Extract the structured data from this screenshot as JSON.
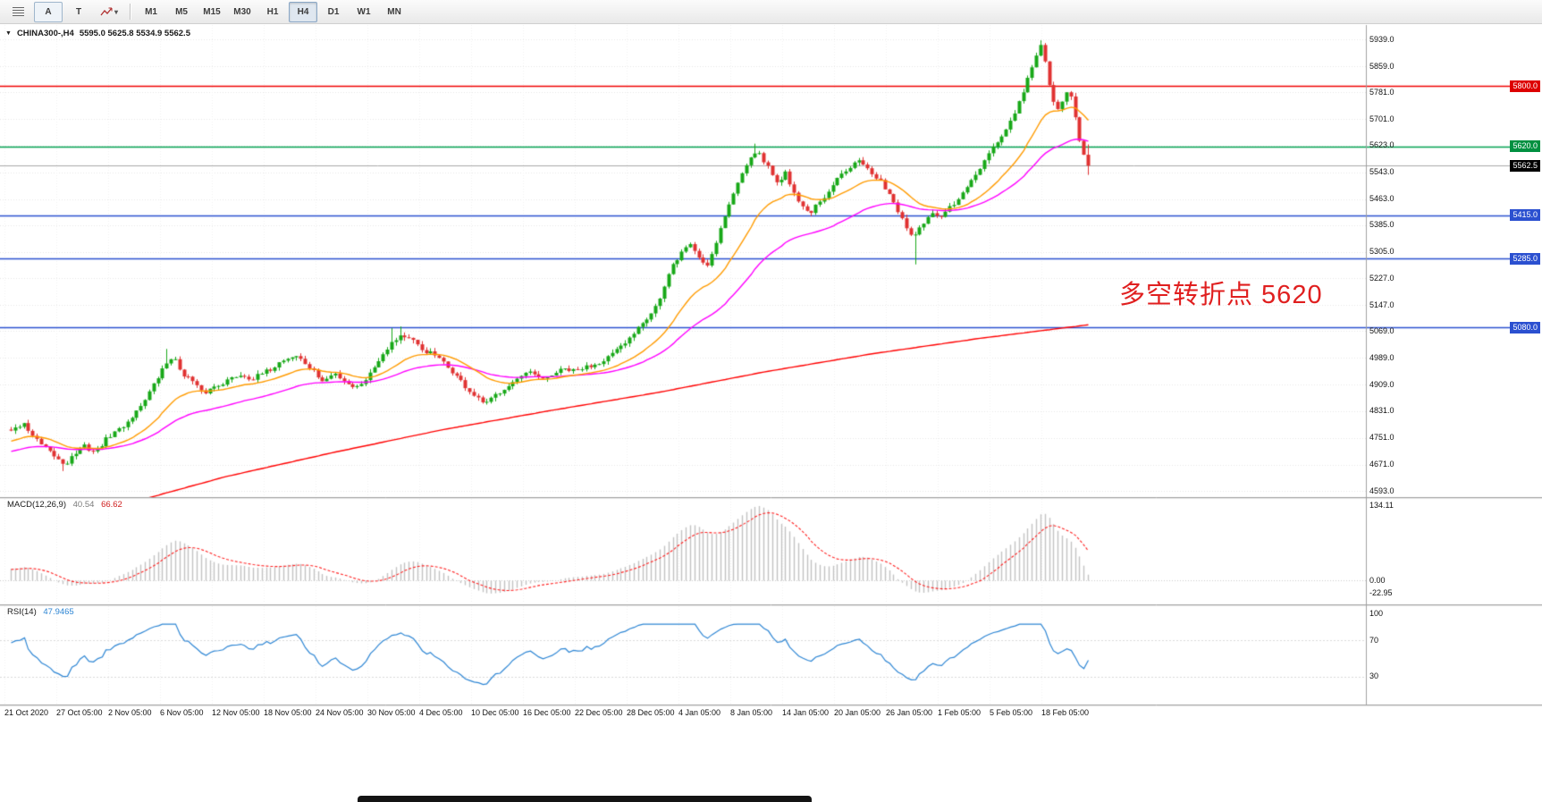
{
  "glyphs": {
    "collapse": "▼",
    "caret": "▾"
  },
  "toolbar": {
    "tools": {
      "a_label": "A",
      "t_label": "T"
    },
    "timeframes": [
      "M1",
      "M5",
      "M15",
      "M30",
      "H1",
      "H4",
      "D1",
      "W1",
      "MN"
    ],
    "active_timeframe": "H4"
  },
  "chart": {
    "title": {
      "symbol_tf": "CHINA300-,H4",
      "ohlc": "5595.0 5625.8 5534.9 5562.5"
    },
    "annotation": {
      "text": "多空转折点 5620"
    },
    "price_axis": {
      "labels": [
        "5939.0",
        "5859.0",
        "5781.0",
        "5701.0",
        "5623.0",
        "5543.0",
        "5463.0",
        "5385.0",
        "5305.0",
        "5227.0",
        "5147.0",
        "5069.0",
        "4989.0",
        "4909.0",
        "4831.0",
        "4751.0",
        "4671.0",
        "4593.0"
      ]
    },
    "levels": [
      {
        "price": 5800.0,
        "label": "5800.0",
        "line": "#f00000",
        "tag": "#dd0000"
      },
      {
        "price": 5620.0,
        "label": "5620.0",
        "line": "#00a050",
        "tag": "#009040"
      },
      {
        "price": 5415.0,
        "label": "5415.0",
        "line": "#2b50d0",
        "tag": "#2b50d0"
      },
      {
        "price": 5285.0,
        "label": "5285.0",
        "line": "#2b50d0",
        "tag": "#2b50d0"
      },
      {
        "price": 5080.0,
        "label": "5080.0",
        "line": "#2b50d0",
        "tag": "#2b50d0"
      }
    ],
    "bid": {
      "price": 5562.5,
      "label": "5562.5",
      "line": "#a8a8a8",
      "tag": "#000000"
    },
    "time_axis": [
      "21 Oct 2020",
      "27 Oct 05:00",
      "2 Nov 05:00",
      "6 Nov 05:00",
      "12 Nov 05:00",
      "18 Nov 05:00",
      "24 Nov 05:00",
      "30 Nov 05:00",
      "4 Dec 05:00",
      "10 Dec 05:00",
      "16 Dec 05:00",
      "22 Dec 05:00",
      "28 Dec 05:00",
      "4 Jan 05:00",
      "8 Jan 05:00",
      "14 Jan 05:00",
      "20 Jan 05:00",
      "26 Jan 05:00",
      "1 Feb 05:00",
      "5 Feb 05:00",
      "18 Feb 05:00"
    ]
  },
  "indicators": {
    "macd": {
      "label": "MACD(12,26,9)",
      "value_main": "40.54",
      "value_signal": "66.62",
      "axis": [
        "134.11",
        "0.00",
        "-22.95"
      ]
    },
    "rsi": {
      "label": "RSI(14)",
      "value": "47.9465",
      "axis": [
        "100",
        "70",
        "30"
      ]
    }
  },
  "colors": {
    "bull": "#18a818",
    "bear": "#e03232",
    "ma_fast": "#ff9b00",
    "ma_mid": "#ff00ff",
    "ma_slow": "#ff0000",
    "macd_hist": "#c2c2c2",
    "macd_signal": "#ff2020",
    "rsi_line": "#2e86d4",
    "grid": "#e7e7e7",
    "separator": "#a0a0a0",
    "annotation": "#e01f1f",
    "bid_line": "#a8a8a8"
  },
  "chart_data": {
    "type": "candlestick",
    "symbol": "CHINA300-",
    "timeframe": "H4",
    "bars": 250,
    "view_price_range": [
      4574,
      5982
    ],
    "last_bar": {
      "open": 5595.0,
      "high": 5625.8,
      "low": 5534.9,
      "close": 5562.5
    },
    "levels": [
      5800.0,
      5620.0,
      5415.0,
      5285.0,
      5080.0
    ],
    "bid": 5562.5,
    "price_anchors": [
      [
        0,
        4775
      ],
      [
        0.012,
        4792
      ],
      [
        0.02,
        4758
      ],
      [
        0.03,
        4722
      ],
      [
        0.042,
        4692
      ],
      [
        0.05,
        4672
      ],
      [
        0.058,
        4700
      ],
      [
        0.068,
        4726
      ],
      [
        0.078,
        4708
      ],
      [
        0.09,
        4752
      ],
      [
        0.105,
        4788
      ],
      [
        0.118,
        4836
      ],
      [
        0.132,
        4905
      ],
      [
        0.143,
        4968
      ],
      [
        0.15,
        4996
      ],
      [
        0.158,
        4948
      ],
      [
        0.168,
        4921
      ],
      [
        0.178,
        4882
      ],
      [
        0.188,
        4903
      ],
      [
        0.2,
        4921
      ],
      [
        0.212,
        4940
      ],
      [
        0.225,
        4928
      ],
      [
        0.24,
        4953
      ],
      [
        0.252,
        4983
      ],
      [
        0.265,
        4996
      ],
      [
        0.278,
        4958
      ],
      [
        0.29,
        4917
      ],
      [
        0.3,
        4944
      ],
      [
        0.31,
        4921
      ],
      [
        0.32,
        4899
      ],
      [
        0.332,
        4936
      ],
      [
        0.342,
        4988
      ],
      [
        0.352,
        5032
      ],
      [
        0.362,
        5058
      ],
      [
        0.372,
        5042
      ],
      [
        0.382,
        5012
      ],
      [
        0.392,
        5001
      ],
      [
        0.402,
        4972
      ],
      [
        0.412,
        4941
      ],
      [
        0.422,
        4902
      ],
      [
        0.432,
        4868
      ],
      [
        0.441,
        4851
      ],
      [
        0.45,
        4879
      ],
      [
        0.46,
        4906
      ],
      [
        0.472,
        4929
      ],
      [
        0.483,
        4946
      ],
      [
        0.493,
        4921
      ],
      [
        0.503,
        4941
      ],
      [
        0.513,
        4956
      ],
      [
        0.523,
        4949
      ],
      [
        0.533,
        4961
      ],
      [
        0.543,
        4972
      ],
      [
        0.553,
        4990
      ],
      [
        0.563,
        5011
      ],
      [
        0.573,
        5041
      ],
      [
        0.583,
        5088
      ],
      [
        0.593,
        5118
      ],
      [
        0.603,
        5168
      ],
      [
        0.613,
        5258
      ],
      [
        0.622,
        5302
      ],
      [
        0.63,
        5332
      ],
      [
        0.638,
        5291
      ],
      [
        0.646,
        5262
      ],
      [
        0.654,
        5331
      ],
      [
        0.662,
        5409
      ],
      [
        0.671,
        5481
      ],
      [
        0.681,
        5558
      ],
      [
        0.689,
        5608
      ],
      [
        0.697,
        5588
      ],
      [
        0.704,
        5551
      ],
      [
        0.711,
        5512
      ],
      [
        0.719,
        5541
      ],
      [
        0.727,
        5483
      ],
      [
        0.734,
        5441
      ],
      [
        0.741,
        5421
      ],
      [
        0.749,
        5446
      ],
      [
        0.757,
        5469
      ],
      [
        0.764,
        5509
      ],
      [
        0.771,
        5538
      ],
      [
        0.779,
        5561
      ],
      [
        0.786,
        5589
      ],
      [
        0.793,
        5562
      ],
      [
        0.8,
        5531
      ],
      [
        0.809,
        5509
      ],
      [
        0.817,
        5471
      ],
      [
        0.824,
        5422
      ],
      [
        0.832,
        5371
      ],
      [
        0.839,
        5349
      ],
      [
        0.847,
        5391
      ],
      [
        0.854,
        5419
      ],
      [
        0.862,
        5401
      ],
      [
        0.869,
        5431
      ],
      [
        0.877,
        5452
      ],
      [
        0.884,
        5481
      ],
      [
        0.892,
        5519
      ],
      [
        0.899,
        5549
      ],
      [
        0.907,
        5589
      ],
      [
        0.914,
        5629
      ],
      [
        0.921,
        5652
      ],
      [
        0.929,
        5699
      ],
      [
        0.937,
        5759
      ],
      [
        0.944,
        5821
      ],
      [
        0.951,
        5887
      ],
      [
        0.956,
        5923
      ],
      [
        0.961,
        5852
      ],
      [
        0.966,
        5763
      ],
      [
        0.971,
        5722
      ],
      [
        0.976,
        5759
      ],
      [
        0.981,
        5791
      ],
      [
        0.986,
        5742
      ],
      [
        0.991,
        5652
      ],
      [
        0.995,
        5601
      ],
      [
        1,
        5562.5
      ]
    ],
    "wick_overrides": [
      {
        "t": 0.05,
        "low": 4652
      },
      {
        "t": 0.143,
        "high": 5016
      },
      {
        "t": 0.352,
        "high": 5078
      },
      {
        "t": 0.362,
        "high": 5083
      },
      {
        "t": 0.689,
        "high": 5628
      },
      {
        "t": 0.839,
        "low": 5268
      },
      {
        "t": 0.956,
        "high": 5936
      }
    ],
    "ma": {
      "fast": {
        "period": 20
      },
      "mid": {
        "period": 45
      },
      "slow_anchors": [
        [
          0,
          4462
        ],
        [
          0.1,
          4548
        ],
        [
          0.2,
          4636
        ],
        [
          0.3,
          4708
        ],
        [
          0.4,
          4775
        ],
        [
          0.5,
          4832
        ],
        [
          0.6,
          4886
        ],
        [
          0.7,
          4948
        ],
        [
          0.8,
          5002
        ],
        [
          0.9,
          5048
        ],
        [
          1,
          5088
        ]
      ]
    },
    "macd_params": [
      12,
      26,
      9
    ],
    "macd_axis_range": [
      -22.95,
      134.11
    ],
    "rsi_period": 14,
    "rsi_last": 47.9465
  }
}
